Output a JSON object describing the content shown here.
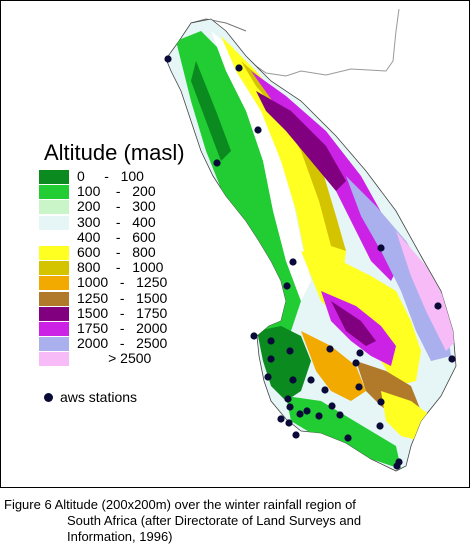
{
  "map": {
    "legend_title": "Altitude (masl)",
    "legend": [
      {
        "label": "0     -   100",
        "color": "#0b8a1f"
      },
      {
        "label": "100    -   200",
        "color": "#22cc33"
      },
      {
        "label": "200    -   300",
        "color": "#c9f5c9"
      },
      {
        "label": "300    -   400",
        "color": "#e6f5f5"
      },
      {
        "label": "400    -   600",
        "color": "#ffffff"
      },
      {
        "label": "600    -   800",
        "color": "#ffff22"
      },
      {
        "label": "800    -   1000",
        "color": "#d4c400"
      },
      {
        "label": "1000   -   1250",
        "color": "#f2a900"
      },
      {
        "label": "1250   -   1500",
        "color": "#b07a2a"
      },
      {
        "label": "1500   -   1750",
        "color": "#800080"
      },
      {
        "label": "1750   -   2000",
        "color": "#cc22e6"
      },
      {
        "label": "2000   -   2500",
        "color": "#aab0ee"
      },
      {
        "label": "        > 2500",
        "color": "#f7bbf7"
      }
    ],
    "stations_label": "aws stations",
    "station_color": "#0a0a38"
  },
  "caption": {
    "line1": "Figure 6 Altitude (200x200m) over the winter rainfall region of",
    "line2": "South Africa (after Directorate of Land Surveys and",
    "line3": "Information, 1996)"
  }
}
